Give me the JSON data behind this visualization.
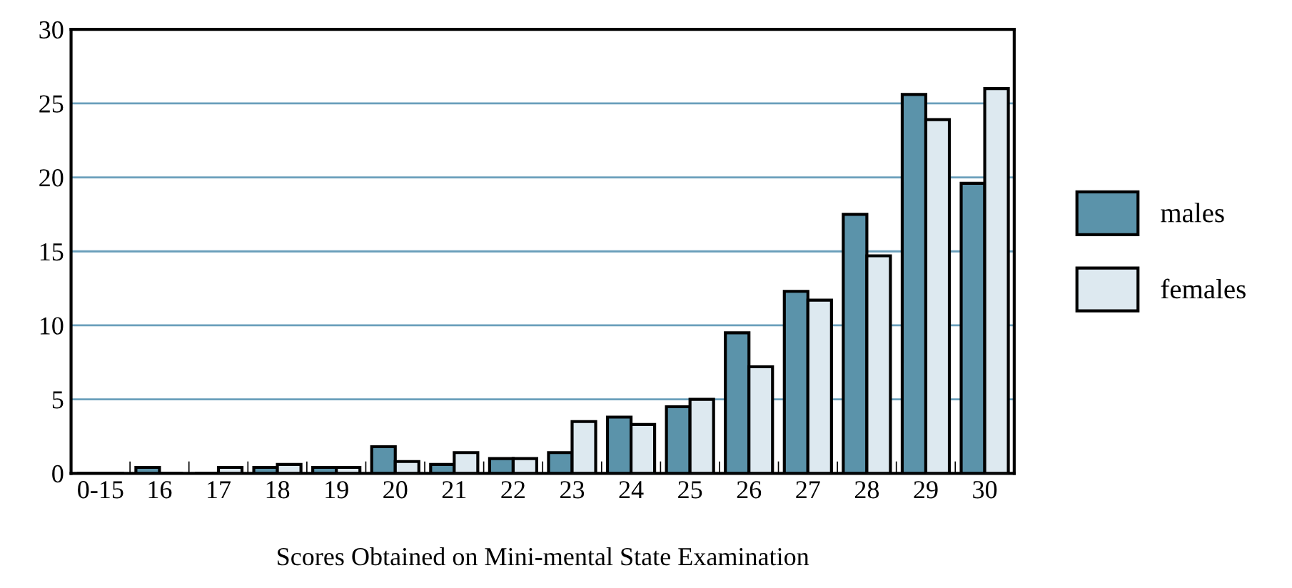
{
  "chart_data": {
    "type": "bar",
    "xlabel": "Scores Obtained on Mini-mental State Examination",
    "categories": [
      "0-15",
      "16",
      "17",
      "18",
      "19",
      "20",
      "21",
      "22",
      "23",
      "24",
      "25",
      "26",
      "27",
      "28",
      "29",
      "30"
    ],
    "series": [
      {
        "name": "males",
        "color": "#5b93aa",
        "values": [
          0,
          0.4,
          0,
          0.4,
          0.4,
          1.8,
          0.6,
          1.0,
          1.4,
          3.8,
          4.5,
          9.5,
          12.3,
          17.5,
          25.6,
          19.6
        ]
      },
      {
        "name": "females",
        "color": "#dde9f0",
        "values": [
          0,
          0,
          0.4,
          0.6,
          0.4,
          0.8,
          1.4,
          1.0,
          3.5,
          3.3,
          5.0,
          7.2,
          11.7,
          14.7,
          23.9,
          26.0
        ]
      }
    ],
    "ylim": [
      0,
      30
    ],
    "yticks": [
      0,
      5,
      10,
      15,
      20,
      25,
      30
    ],
    "grid": "y",
    "legend": "right"
  }
}
